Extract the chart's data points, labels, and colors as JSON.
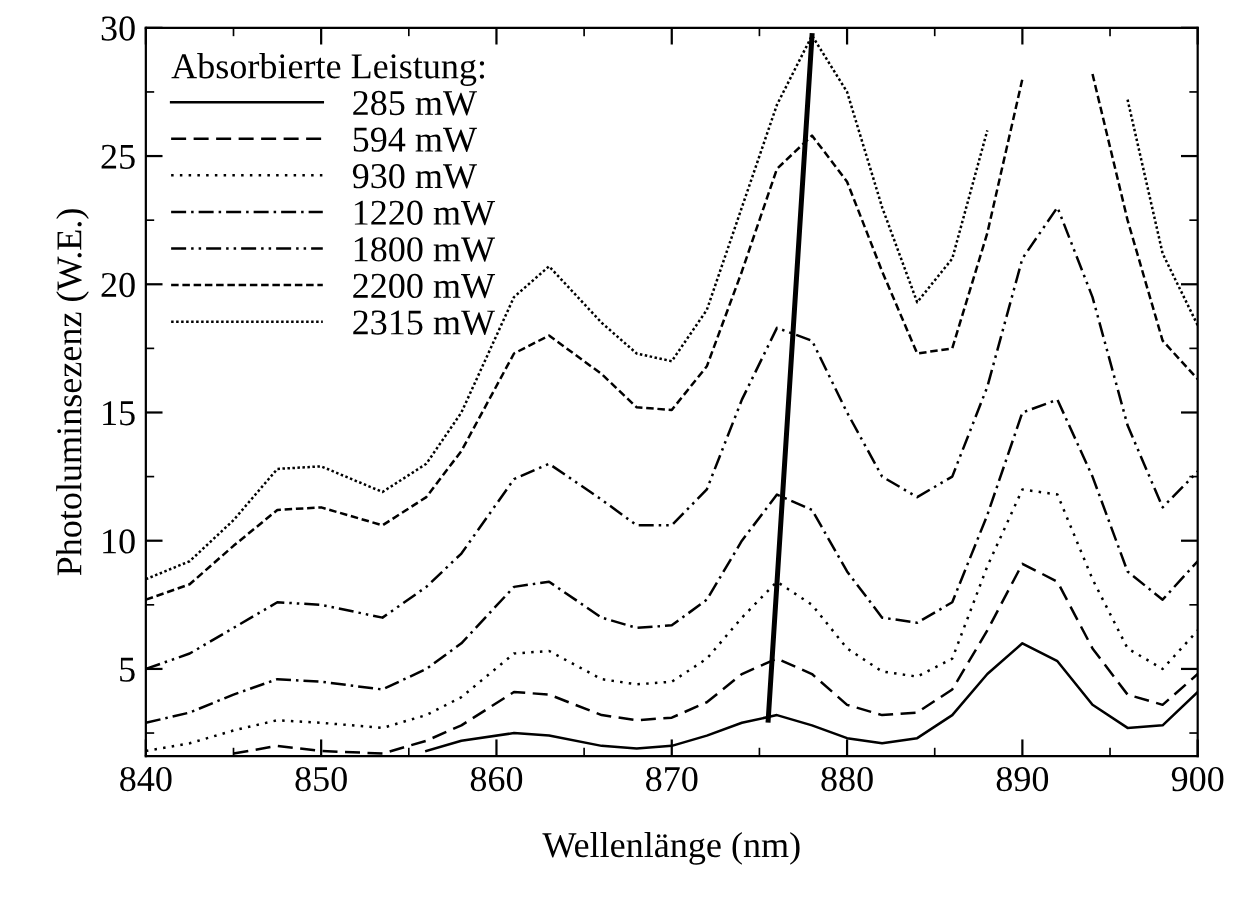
{
  "chart_data": {
    "type": "line",
    "xlabel": "Wellenlänge (nm)",
    "ylabel": "Photoluminsezenz (W.E.)",
    "legend_title": "Absorbierte Leistung:",
    "legend": "top left",
    "grid": false,
    "x": [
      840,
      842.5,
      845,
      847.5,
      850,
      853.5,
      856,
      858,
      861,
      863,
      866,
      868,
      870,
      872,
      874,
      876,
      878,
      880,
      882,
      884,
      886,
      888,
      890,
      892,
      894,
      896,
      898,
      900
    ],
    "xlim": [
      840,
      900
    ],
    "ylim": [
      1.6,
      30
    ],
    "xticks": [
      840,
      {
        "value": 845,
        "label": null
      },
      850,
      {
        "value": 855,
        "label": null
      },
      860,
      {
        "value": 865,
        "label": null
      },
      870,
      {
        "value": 875,
        "label": null
      },
      880,
      {
        "value": 885,
        "label": null
      },
      890,
      {
        "value": 895,
        "label": null
      },
      900
    ],
    "yticks": [
      {
        "value": 2.5,
        "label": null
      },
      5,
      {
        "value": 7.5,
        "label": null
      },
      10,
      {
        "value": 12.5,
        "label": null
      },
      15,
      {
        "value": 17.5,
        "label": null
      },
      20,
      {
        "value": 22.5,
        "label": null
      },
      25,
      {
        "value": 27.5,
        "label": null
      },
      30
    ],
    "series": [
      {
        "name": "285 mW",
        "color": "#000000",
        "line_style": "solid",
        "values": [
          null,
          null,
          null,
          null,
          null,
          null,
          1.8,
          2.2,
          2.5,
          2.4,
          2.0,
          1.9,
          2.0,
          2.4,
          2.9,
          3.2,
          2.8,
          2.3,
          2.1,
          2.3,
          3.2,
          4.8,
          6.0,
          5.3,
          3.6,
          2.7,
          2.8,
          4.1
        ]
      },
      {
        "name": "594 mW",
        "color": "#000000",
        "line_style": "dashed",
        "values": [
          null,
          null,
          1.7,
          2.0,
          1.8,
          1.7,
          2.2,
          2.8,
          4.1,
          4.0,
          3.2,
          3.0,
          3.1,
          3.7,
          4.8,
          5.4,
          4.8,
          3.6,
          3.2,
          3.3,
          4.2,
          6.5,
          9.1,
          8.4,
          5.8,
          4.0,
          3.6,
          4.8
        ]
      },
      {
        "name": "930 mW",
        "color": "#000000",
        "line_style": "dotted",
        "values": [
          1.8,
          2.1,
          2.6,
          3.0,
          2.9,
          2.7,
          3.2,
          3.9,
          5.6,
          5.7,
          4.6,
          4.4,
          4.5,
          5.4,
          7.0,
          8.4,
          7.5,
          5.8,
          4.9,
          4.7,
          5.4,
          9.0,
          12.0,
          11.8,
          8.5,
          5.8,
          5.0,
          6.5
        ]
      },
      {
        "name": "1220 mW",
        "color": "#000000",
        "line_style": "dashdot",
        "values": [
          2.9,
          3.3,
          4.0,
          4.6,
          4.5,
          4.2,
          5.0,
          6.0,
          8.2,
          8.4,
          7.0,
          6.6,
          6.7,
          7.7,
          10.0,
          11.8,
          11.2,
          8.8,
          7.0,
          6.8,
          7.6,
          11.0,
          15.0,
          15.5,
          12.5,
          8.8,
          7.7,
          9.2
        ]
      },
      {
        "name": "1800 mW",
        "color": "#000000",
        "line_style": "dashdotdot",
        "values": [
          5.0,
          5.6,
          6.6,
          7.6,
          7.5,
          7.0,
          8.2,
          9.5,
          12.4,
          13.0,
          11.6,
          10.6,
          10.6,
          12.0,
          15.5,
          18.3,
          17.8,
          15.0,
          12.5,
          11.7,
          12.5,
          16.0,
          21.0,
          23.0,
          19.5,
          14.5,
          11.3,
          12.7
        ]
      },
      {
        "name": "2200 mW",
        "color": "#000000",
        "line_style": "densely dashed",
        "values": [
          7.7,
          8.3,
          9.8,
          11.2,
          11.3,
          10.6,
          11.7,
          13.5,
          17.3,
          18.0,
          16.5,
          15.2,
          15.1,
          16.8,
          20.5,
          24.5,
          25.8,
          24.0,
          20.5,
          17.3,
          17.5,
          22.0,
          28.0,
          null,
          28.2,
          22.5,
          17.8,
          16.3
        ]
      },
      {
        "name": "2315 mW",
        "color": "#000000",
        "line_style": "densely dotted",
        "values": [
          8.5,
          9.2,
          10.8,
          12.8,
          12.9,
          11.9,
          13.0,
          15.0,
          19.5,
          20.7,
          18.5,
          17.3,
          17.0,
          19.0,
          23.0,
          27.0,
          29.7,
          27.5,
          23.0,
          19.3,
          21.0,
          26.0,
          null,
          null,
          null,
          27.2,
          21.2,
          18.4
        ]
      },
      {
        "type": "line",
        "color": "#000000",
        "line_style": "solid",
        "x": [
          875.5,
          878
        ],
        "values": [
          3.0,
          29.7
        ]
      }
    ]
  }
}
